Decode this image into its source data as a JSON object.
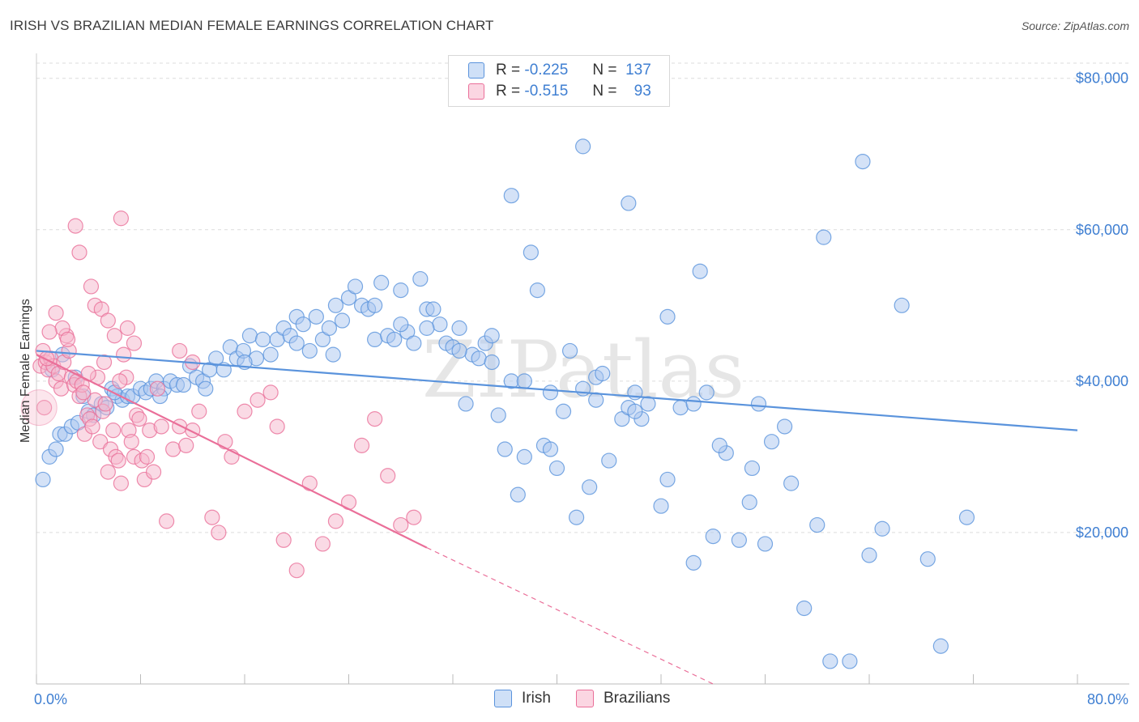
{
  "header": {
    "title": "IRISH VS BRAZILIAN MEDIAN FEMALE EARNINGS CORRELATION CHART",
    "source": "Source: ZipAtlas.com"
  },
  "legend_top": {
    "rows": [
      {
        "r_label": "R =",
        "r_value": "-0.225",
        "n_label": "N =",
        "n_value": "137",
        "color": "#a9c6f0"
      },
      {
        "r_label": "R =",
        "r_value": "-0.515",
        "n_label": "N =",
        "n_value": "93",
        "color": "#f6b6cb"
      }
    ]
  },
  "legend_bottom": {
    "items": [
      {
        "label": "Irish",
        "color": "#a9c6f0"
      },
      {
        "label": "Brazilians",
        "color": "#f6b6cb"
      }
    ]
  },
  "watermark": "ZIPatlas",
  "chart_data": {
    "type": "scatter",
    "ylabel": "Median Female Earnings",
    "xlim": [
      0,
      80
    ],
    "ylim": [
      0,
      82000
    ],
    "x_tick_labels": [
      {
        "value": 0,
        "label": "0.0%"
      },
      {
        "value": 80,
        "label": "80.0%"
      }
    ],
    "y_ticks": [
      {
        "value": 20000,
        "label": "$20,000"
      },
      {
        "value": 40000,
        "label": "$40,000"
      },
      {
        "value": 60000,
        "label": "$60,000"
      },
      {
        "value": 80000,
        "label": "$80,000"
      }
    ],
    "grid": true,
    "series": [
      {
        "name": "Irish",
        "color": "#5a93dc",
        "fill": "#a9c6f0",
        "trend": {
          "x1": 0,
          "y1": 44000,
          "x2": 80,
          "y2": 33500
        },
        "points": [
          [
            0.5,
            27000
          ],
          [
            1.0,
            30000
          ],
          [
            1.5,
            31000
          ],
          [
            1.8,
            33000
          ],
          [
            2.2,
            33000
          ],
          [
            2.7,
            34000
          ],
          [
            3.2,
            34500
          ],
          [
            3.6,
            38000
          ],
          [
            4.0,
            36000
          ],
          [
            4.4,
            35500
          ],
          [
            5.0,
            37000
          ],
          [
            5.4,
            36500
          ],
          [
            5.8,
            39000
          ],
          [
            6.2,
            38000
          ],
          [
            6.6,
            37500
          ],
          [
            7.0,
            38000
          ],
          [
            7.4,
            38000
          ],
          [
            8.0,
            39000
          ],
          [
            8.4,
            38500
          ],
          [
            8.8,
            39000
          ],
          [
            9.2,
            40000
          ],
          [
            9.8,
            39000
          ],
          [
            10.3,
            40000
          ],
          [
            10.8,
            39500
          ],
          [
            11.3,
            39500
          ],
          [
            11.8,
            42000
          ],
          [
            12.3,
            40500
          ],
          [
            12.8,
            40000
          ],
          [
            13.3,
            41500
          ],
          [
            13.8,
            43000
          ],
          [
            14.4,
            41500
          ],
          [
            14.9,
            44500
          ],
          [
            15.4,
            43000
          ],
          [
            15.9,
            44000
          ],
          [
            16.4,
            46000
          ],
          [
            16.9,
            43000
          ],
          [
            17.4,
            45500
          ],
          [
            18.0,
            43500
          ],
          [
            18.5,
            45500
          ],
          [
            19.0,
            47000
          ],
          [
            19.5,
            46000
          ],
          [
            20.0,
            48500
          ],
          [
            20.5,
            47500
          ],
          [
            21.0,
            44000
          ],
          [
            21.5,
            48500
          ],
          [
            22.0,
            45500
          ],
          [
            22.5,
            47000
          ],
          [
            23.0,
            50000
          ],
          [
            23.5,
            48000
          ],
          [
            24.0,
            51000
          ],
          [
            24.5,
            52500
          ],
          [
            25.0,
            50000
          ],
          [
            25.5,
            49500
          ],
          [
            26.0,
            45500
          ],
          [
            26.5,
            53000
          ],
          [
            27.0,
            46000
          ],
          [
            27.5,
            45500
          ],
          [
            28.0,
            52000
          ],
          [
            28.5,
            46500
          ],
          [
            29.0,
            45000
          ],
          [
            29.5,
            53500
          ],
          [
            30.0,
            49500
          ],
          [
            30.5,
            49500
          ],
          [
            31.0,
            47500
          ],
          [
            31.5,
            45000
          ],
          [
            32.0,
            44500
          ],
          [
            32.5,
            47000
          ],
          [
            33.0,
            37000
          ],
          [
            33.5,
            43500
          ],
          [
            34.0,
            43000
          ],
          [
            34.5,
            45000
          ],
          [
            35.0,
            46000
          ],
          [
            35.5,
            35500
          ],
          [
            36.0,
            31000
          ],
          [
            36.5,
            40000
          ],
          [
            37.0,
            25000
          ],
          [
            37.5,
            30000
          ],
          [
            38.0,
            57000
          ],
          [
            38.5,
            52000
          ],
          [
            39.0,
            31500
          ],
          [
            39.5,
            31000
          ],
          [
            40.0,
            28500
          ],
          [
            40.5,
            36000
          ],
          [
            41.0,
            44000
          ],
          [
            41.5,
            22000
          ],
          [
            42.0,
            39000
          ],
          [
            42.5,
            26000
          ],
          [
            43.0,
            40500
          ],
          [
            43.5,
            41000
          ],
          [
            44.0,
            29500
          ],
          [
            45.0,
            35000
          ],
          [
            45.5,
            36500
          ],
          [
            46.0,
            38500
          ],
          [
            46.5,
            35000
          ],
          [
            47.0,
            37000
          ],
          [
            48.0,
            23500
          ],
          [
            49.5,
            36500
          ],
          [
            50.5,
            37000
          ],
          [
            51.5,
            38500
          ],
          [
            52.0,
            19500
          ],
          [
            53.0,
            30500
          ],
          [
            54.0,
            19000
          ],
          [
            54.8,
            24000
          ],
          [
            55.5,
            37000
          ],
          [
            56.5,
            32000
          ],
          [
            58.0,
            26500
          ],
          [
            59.0,
            10000
          ],
          [
            60.5,
            59000
          ],
          [
            61.0,
            3000
          ],
          [
            62.5,
            3000
          ],
          [
            63.5,
            69000
          ],
          [
            65.0,
            20500
          ],
          [
            66.5,
            50000
          ],
          [
            68.5,
            16500
          ],
          [
            69.5,
            5000
          ],
          [
            71.5,
            22000
          ],
          [
            45.5,
            63500
          ],
          [
            42.0,
            71000
          ],
          [
            36.5,
            64500
          ],
          [
            48.5,
            48500
          ],
          [
            50.5,
            16000
          ],
          [
            51.0,
            54500
          ],
          [
            56.0,
            18500
          ],
          [
            1.2,
            41500
          ],
          [
            2.0,
            43500
          ],
          [
            3.0,
            40500
          ],
          [
            6.0,
            38500
          ],
          [
            9.5,
            38000
          ],
          [
            13.0,
            39000
          ],
          [
            16.0,
            42500
          ],
          [
            20.0,
            45000
          ],
          [
            22.8,
            43500
          ],
          [
            26.0,
            50000
          ],
          [
            28.0,
            47500
          ],
          [
            30.0,
            47000
          ],
          [
            32.5,
            44000
          ],
          [
            35.0,
            42500
          ],
          [
            37.5,
            40000
          ],
          [
            39.5,
            38500
          ],
          [
            43.0,
            37500
          ],
          [
            46.0,
            36000
          ],
          [
            48.5,
            27000
          ],
          [
            52.5,
            31500
          ],
          [
            55.0,
            28500
          ],
          [
            57.5,
            34000
          ],
          [
            60.0,
            21000
          ],
          [
            64.0,
            17000
          ]
        ]
      },
      {
        "name": "Brazilians",
        "color": "#ea6f99",
        "fill": "#f6b6cb",
        "trend": {
          "x1": 0,
          "y1": 43500,
          "x2": 30,
          "y2": 18000
        },
        "trend_dashed_to": {
          "x": 52,
          "y": 0
        },
        "points": [
          [
            0.3,
            42000
          ],
          [
            0.5,
            44000
          ],
          [
            0.7,
            42500
          ],
          [
            0.9,
            41500
          ],
          [
            1.1,
            43000
          ],
          [
            1.3,
            42000
          ],
          [
            1.5,
            40000
          ],
          [
            1.7,
            41000
          ],
          [
            1.9,
            39000
          ],
          [
            2.1,
            42500
          ],
          [
            2.3,
            46000
          ],
          [
            2.5,
            44000
          ],
          [
            2.7,
            40500
          ],
          [
            2.9,
            39500
          ],
          [
            3.1,
            40000
          ],
          [
            3.3,
            38000
          ],
          [
            3.5,
            39500
          ],
          [
            3.7,
            33000
          ],
          [
            3.9,
            35500
          ],
          [
            4.1,
            35000
          ],
          [
            4.3,
            34000
          ],
          [
            4.5,
            37500
          ],
          [
            4.7,
            40500
          ],
          [
            4.9,
            32000
          ],
          [
            5.1,
            36000
          ],
          [
            5.3,
            37000
          ],
          [
            5.5,
            28000
          ],
          [
            5.7,
            31000
          ],
          [
            5.9,
            33500
          ],
          [
            6.1,
            30000
          ],
          [
            6.3,
            29500
          ],
          [
            6.5,
            26500
          ],
          [
            6.7,
            43500
          ],
          [
            6.9,
            40500
          ],
          [
            7.1,
            33500
          ],
          [
            7.3,
            32000
          ],
          [
            7.5,
            30000
          ],
          [
            7.7,
            35500
          ],
          [
            7.9,
            35000
          ],
          [
            8.1,
            29500
          ],
          [
            8.3,
            27000
          ],
          [
            8.5,
            30000
          ],
          [
            8.7,
            33500
          ],
          [
            9.0,
            28000
          ],
          [
            9.3,
            39000
          ],
          [
            9.6,
            34000
          ],
          [
            10.0,
            21500
          ],
          [
            10.5,
            31000
          ],
          [
            11.0,
            34000
          ],
          [
            11.5,
            31500
          ],
          [
            12.0,
            33500
          ],
          [
            12.5,
            36000
          ],
          [
            13.5,
            22000
          ],
          [
            14.0,
            20000
          ],
          [
            14.5,
            32000
          ],
          [
            15.0,
            30000
          ],
          [
            16.0,
            36000
          ],
          [
            17.0,
            37500
          ],
          [
            18.0,
            38500
          ],
          [
            19.0,
            19000
          ],
          [
            20.0,
            15000
          ],
          [
            21.0,
            26500
          ],
          [
            22.0,
            18500
          ],
          [
            23.0,
            21500
          ],
          [
            24.0,
            24000
          ],
          [
            25.0,
            31500
          ],
          [
            26.0,
            35000
          ],
          [
            27.0,
            27500
          ],
          [
            28.0,
            21000
          ],
          [
            29.0,
            22000
          ],
          [
            3.0,
            60500
          ],
          [
            3.3,
            57000
          ],
          [
            4.2,
            52500
          ],
          [
            4.5,
            50000
          ],
          [
            5.0,
            49500
          ],
          [
            5.5,
            48000
          ],
          [
            6.0,
            46000
          ],
          [
            6.5,
            61500
          ],
          [
            7.0,
            47000
          ],
          [
            7.5,
            45000
          ],
          [
            2.0,
            47000
          ],
          [
            2.4,
            45500
          ],
          [
            1.5,
            49000
          ],
          [
            1.0,
            46500
          ],
          [
            0.8,
            43000
          ],
          [
            0.6,
            36500
          ],
          [
            3.6,
            38500
          ],
          [
            4.0,
            41000
          ],
          [
            5.2,
            42500
          ],
          [
            6.4,
            40000
          ],
          [
            11.0,
            44000
          ],
          [
            12.0,
            42500
          ],
          [
            18.5,
            34000
          ]
        ]
      }
    ]
  }
}
